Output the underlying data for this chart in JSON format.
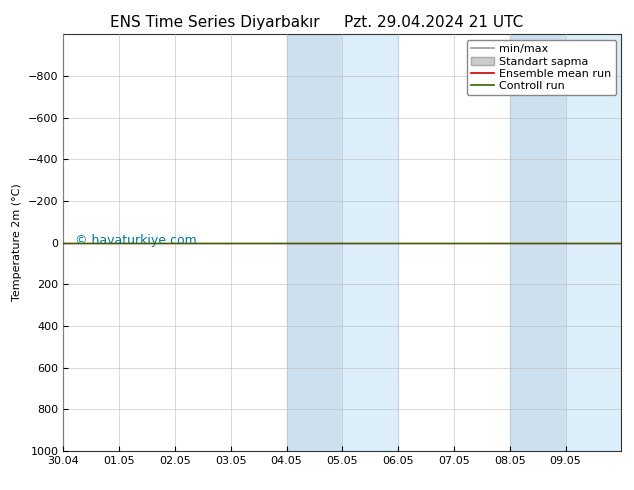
{
  "title": "ENS Time Series Diyarbakır",
  "title_right": "Pzt. 29.04.2024 21 UTC",
  "ylabel": "Temperature 2m (°C)",
  "watermark": "© havaturkiye.com",
  "xlim_start": 0,
  "xlim_end": 10,
  "ylim_bottom": 1000,
  "ylim_top": -1000,
  "yticks": [
    -800,
    -600,
    -400,
    -200,
    0,
    200,
    400,
    600,
    800,
    1000
  ],
  "xtick_labels": [
    "30.04",
    "01.05",
    "02.05",
    "03.05",
    "04.05",
    "05.05",
    "06.05",
    "07.05",
    "08.05",
    "09.05"
  ],
  "xtick_positions": [
    0,
    1,
    2,
    3,
    4,
    5,
    6,
    7,
    8,
    9
  ],
  "shade_regions": [
    [
      4.0,
      5.0
    ],
    [
      5.0,
      6.0
    ],
    [
      8.0,
      9.0
    ],
    [
      9.0,
      10.0
    ]
  ],
  "shade_colors": [
    "#cce0f0",
    "#dceefa",
    "#cce0f0",
    "#dceefa"
  ],
  "ensemble_mean_y": 0,
  "control_run_y": 0,
  "ensemble_mean_color": "#cc0000",
  "control_run_color": "#336600",
  "minmax_color": "#999999",
  "stddev_color": "#cccccc",
  "legend_labels": [
    "min/max",
    "Standart sapma",
    "Ensemble mean run",
    "Controll run"
  ],
  "background_color": "#ffffff",
  "title_fontsize": 11,
  "axis_fontsize": 8,
  "tick_fontsize": 8,
  "watermark_color": "#007799",
  "watermark_fontsize": 9,
  "legend_fontsize": 8
}
